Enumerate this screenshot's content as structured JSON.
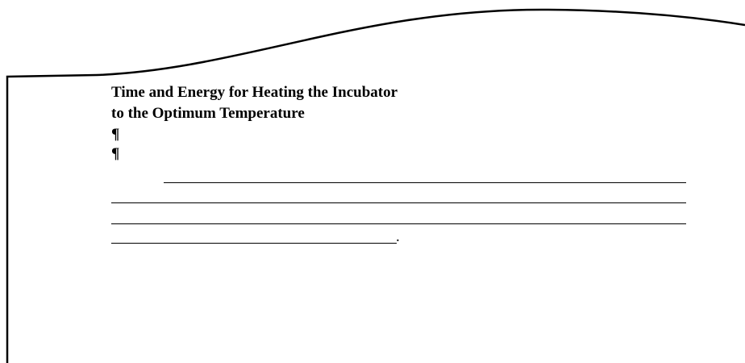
{
  "heading": {
    "lines": [
      "Time and Energy for Heating the Incubator",
      "to the Optimum Temperature"
    ]
  },
  "paragraph_marks": [
    "¶",
    "¶"
  ],
  "blank": {
    "end_mark": "."
  }
}
